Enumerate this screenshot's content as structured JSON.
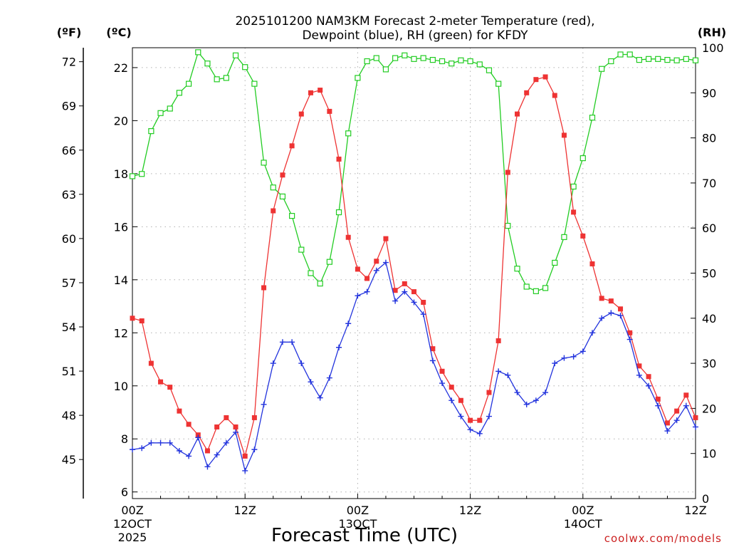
{
  "chart_data": {
    "type": "line",
    "title_line1": "2025101200 NAM3KM Forecast 2-meter Temperature (red),",
    "title_line2": "Dewpoint (blue), RH (green) for KFDY",
    "xlabel": "Forecast Time (UTC)",
    "credit": "coolwx.com/models",
    "left_f_unit": "(ºF)",
    "left_c_unit": "(ºC)",
    "right_unit": "(RH)",
    "x_hours_range": [
      0,
      60
    ],
    "c_range": [
      5.75,
      22.75
    ],
    "rh_range": [
      0,
      100
    ],
    "f_ticks": [
      "72",
      "69",
      "66",
      "63",
      "60",
      "57",
      "54",
      "51",
      "48",
      "45"
    ],
    "c_ticks": [
      "22",
      "20",
      "18",
      "16",
      "14",
      "12",
      "10",
      "8",
      "6"
    ],
    "rh_ticks": [
      "100",
      "90",
      "80",
      "70",
      "60",
      "50",
      "40",
      "30",
      "20",
      "10",
      "0"
    ],
    "x_ticks": [
      {
        "hour": 0,
        "label": "00Z",
        "sub1": "12OCT",
        "sub2": "2025"
      },
      {
        "hour": 12,
        "label": "12Z",
        "sub1": "",
        "sub2": ""
      },
      {
        "hour": 24,
        "label": "00Z",
        "sub1": "13OCT",
        "sub2": ""
      },
      {
        "hour": 36,
        "label": "12Z",
        "sub1": "",
        "sub2": ""
      },
      {
        "hour": 48,
        "label": "00Z",
        "sub1": "14OCT",
        "sub2": ""
      },
      {
        "hour": 60,
        "label": "12Z",
        "sub1": "",
        "sub2": ""
      }
    ],
    "series": [
      {
        "name": "Temperature",
        "unit": "C",
        "color": "#ee3333",
        "marker": "filled-square",
        "values": [
          12.55,
          12.45,
          10.85,
          10.15,
          9.95,
          9.05,
          8.55,
          8.15,
          7.55,
          8.45,
          8.8,
          8.45,
          7.35,
          8.8,
          13.7,
          16.6,
          17.95,
          19.05,
          20.25,
          21.05,
          21.15,
          20.35,
          18.55,
          15.6,
          14.4,
          14.05,
          14.7,
          15.55,
          13.6,
          13.85,
          13.55,
          13.15,
          11.4,
          10.55,
          9.95,
          9.45,
          8.7,
          8.7,
          9.75,
          11.7,
          18.05,
          20.25,
          21.05,
          21.55,
          21.65,
          20.95,
          19.45,
          16.55,
          15.65,
          14.6,
          13.3,
          13.2,
          12.9,
          12.0,
          10.75,
          10.35,
          9.5,
          8.6,
          9.05,
          9.65,
          8.8
        ]
      },
      {
        "name": "Dewpoint",
        "unit": "C",
        "color": "#2233dd",
        "marker": "plus",
        "values": [
          7.6,
          7.65,
          7.85,
          7.85,
          7.85,
          7.55,
          7.35,
          8.05,
          6.95,
          7.4,
          7.85,
          8.25,
          6.8,
          7.6,
          9.3,
          10.85,
          11.65,
          11.65,
          10.85,
          10.15,
          9.55,
          10.3,
          11.45,
          12.35,
          13.4,
          13.55,
          14.35,
          14.65,
          13.2,
          13.55,
          13.15,
          12.7,
          10.95,
          10.1,
          9.45,
          8.85,
          8.35,
          8.2,
          8.85,
          10.55,
          10.4,
          9.75,
          9.3,
          9.45,
          9.75,
          10.85,
          11.05,
          11.1,
          11.3,
          12.0,
          12.55,
          12.75,
          12.65,
          11.75,
          10.4,
          10.0,
          9.25,
          8.3,
          8.7,
          9.25,
          8.45
        ]
      },
      {
        "name": "RH",
        "unit": "%",
        "color": "#22cc22",
        "marker": "open-square",
        "values": [
          71.5,
          72,
          81.5,
          85.5,
          86.5,
          90,
          92,
          99,
          96.5,
          93,
          93.3,
          98.3,
          95.7,
          92,
          74.5,
          69,
          67,
          62.7,
          55.2,
          50,
          47.7,
          52.5,
          63.5,
          81,
          93.3,
          97,
          97.7,
          95.2,
          97.7,
          98.3,
          97.5,
          97.7,
          97.3,
          97,
          96.5,
          97.2,
          97,
          96.3,
          95,
          92,
          60.5,
          51,
          47,
          46,
          46.7,
          52.3,
          58,
          69.2,
          75.5,
          84.5,
          95.3,
          97,
          98.5,
          98.5,
          97.3,
          97.5,
          97.5,
          97.3,
          97.2,
          97.5,
          97.2
        ]
      }
    ]
  }
}
